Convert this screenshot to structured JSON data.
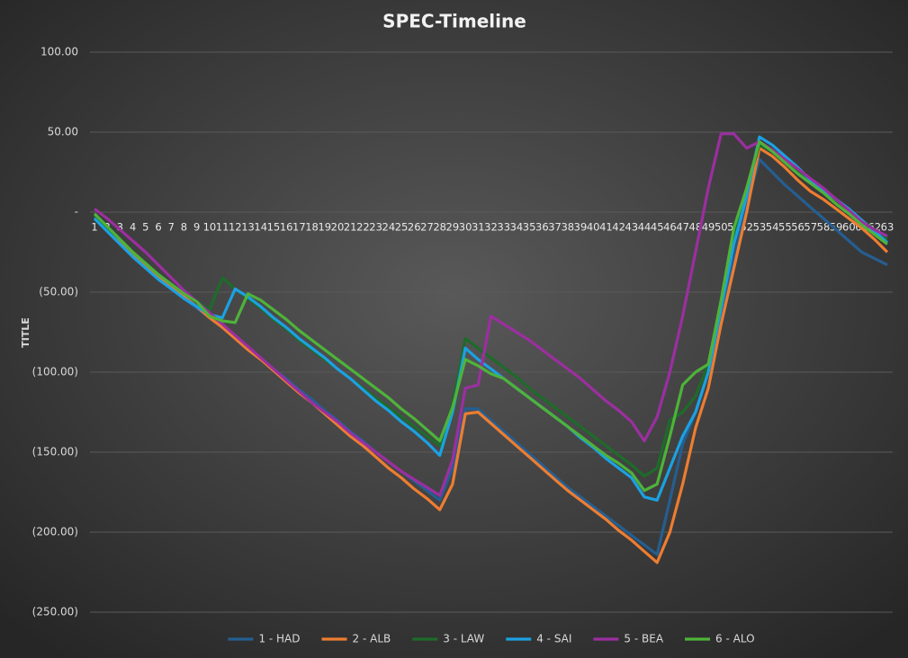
{
  "chart_data": {
    "type": "line",
    "title": "SPEC-Timeline",
    "y_label": "TITLE",
    "categories": [
      "1",
      "2",
      "3",
      "4",
      "5",
      "6",
      "7",
      "8",
      "9",
      "10",
      "11",
      "12",
      "13",
      "14",
      "15",
      "16",
      "17",
      "18",
      "19",
      "20",
      "21",
      "22",
      "23",
      "24",
      "25",
      "26",
      "27",
      "28",
      "29",
      "30",
      "31",
      "32",
      "33",
      "34",
      "35",
      "36",
      "37",
      "38",
      "39",
      "40",
      "41",
      "42",
      "43",
      "44",
      "45",
      "46",
      "47",
      "48",
      "49",
      "50",
      "51",
      "52",
      "53",
      "54",
      "55",
      "56",
      "57",
      "58",
      "59",
      "60",
      "61",
      "62",
      "63"
    ],
    "ylim": [
      -250,
      100
    ],
    "yticks": [
      {
        "value": -250,
        "label": "(250.00)"
      },
      {
        "value": -200,
        "label": "(200.00)"
      },
      {
        "value": -150,
        "label": "(150.00)"
      },
      {
        "value": -100,
        "label": "(100.00)"
      },
      {
        "value": -50,
        "label": "(50.00)"
      },
      {
        "value": 0,
        "label": "-"
      },
      {
        "value": 50,
        "label": "50.00"
      },
      {
        "value": 100,
        "label": "100.00"
      }
    ],
    "grid": true,
    "legend": "bottom",
    "series": [
      {
        "name": "1 - HAD",
        "color": "#255e91",
        "values": [
          -3,
          -11,
          -19,
          -27,
          -34,
          -41,
          -48,
          -54,
          -60,
          -66,
          -72,
          -78,
          -85,
          -91,
          -98,
          -104,
          -111,
          -117,
          -124,
          -130,
          -137,
          -143,
          -150,
          -156,
          -162,
          -168,
          -174,
          -180,
          -160,
          -123,
          -123,
          -130,
          -137,
          -144,
          -151,
          -158,
          -165,
          -172,
          -178,
          -184,
          -190,
          -196,
          -202,
          -208,
          -214,
          -180,
          -145,
          -125,
          -100,
          -65,
          -30,
          5,
          33,
          25,
          17,
          10,
          3,
          -4,
          -11,
          -18,
          -25,
          -29,
          -33
        ]
      },
      {
        "name": "2 - ALB",
        "color": "#ed7d31",
        "values": [
          -2,
          -10,
          -18,
          -26,
          -33,
          -40,
          -47,
          -53,
          -59,
          -66,
          -72,
          -79,
          -86,
          -92,
          -99,
          -106,
          -113,
          -119,
          -126,
          -133,
          -140,
          -146,
          -153,
          -160,
          -166,
          -173,
          -179,
          -186,
          -170,
          -126,
          -125,
          -132,
          -139,
          -146,
          -153,
          -160,
          -167,
          -174,
          -180,
          -186,
          -192,
          -199,
          -205,
          -212,
          -219,
          -200,
          -170,
          -135,
          -110,
          -70,
          -35,
          0,
          40,
          35,
          28,
          20,
          13,
          8,
          2,
          -4,
          -10,
          -17,
          -25
        ]
      },
      {
        "name": "3 - LAW",
        "color": "#1e6b2a",
        "values": [
          -2,
          -10,
          -17,
          -25,
          -32,
          -39,
          -45,
          -51,
          -56,
          -61,
          -41,
          -48,
          -54,
          -60,
          -67,
          -73,
          -80,
          -86,
          -92,
          -98,
          -104,
          -110,
          -116,
          -122,
          -128,
          -134,
          -140,
          -146,
          -120,
          -79,
          -85,
          -91,
          -97,
          -103,
          -110,
          -116,
          -122,
          -128,
          -134,
          -140,
          -146,
          -152,
          -158,
          -165,
          -160,
          -130,
          -125,
          -115,
          -95,
          -55,
          -15,
          15,
          42,
          38,
          32,
          26,
          19,
          13,
          7,
          1,
          -5,
          -11,
          -17
        ]
      },
      {
        "name": "4 - SAI",
        "color": "#1ba1e2",
        "values": [
          -4,
          -12,
          -20,
          -28,
          -35,
          -42,
          -48,
          -54,
          -59,
          -64,
          -66,
          -48,
          -53,
          -59,
          -66,
          -72,
          -79,
          -85,
          -91,
          -98,
          -104,
          -111,
          -118,
          -124,
          -131,
          -137,
          -144,
          -152,
          -125,
          -85,
          -92,
          -98,
          -104,
          -110,
          -116,
          -122,
          -128,
          -134,
          -141,
          -147,
          -154,
          -160,
          -166,
          -178,
          -180,
          -160,
          -140,
          -125,
          -100,
          -60,
          -20,
          10,
          47,
          42,
          35,
          28,
          20,
          14,
          8,
          2,
          -5,
          -12,
          -19
        ]
      },
      {
        "name": "5 - BEA",
        "color": "#9b2fa0",
        "values": [
          2,
          -4,
          -11,
          -18,
          -25,
          -33,
          -41,
          -49,
          -56,
          -63,
          -70,
          -77,
          -84,
          -91,
          -98,
          -105,
          -112,
          -119,
          -125,
          -131,
          -138,
          -144,
          -150,
          -156,
          -162,
          -167,
          -172,
          -177,
          -155,
          -110,
          -108,
          -65,
          -70,
          -75,
          -80,
          -86,
          -92,
          -98,
          -104,
          -111,
          -118,
          -124,
          -131,
          -143,
          -128,
          -100,
          -65,
          -25,
          15,
          49,
          49,
          40,
          44,
          39,
          33,
          27,
          21,
          15,
          8,
          1,
          -6,
          -11,
          -15
        ]
      },
      {
        "name": "6 - ALO",
        "color": "#4eb33a",
        "values": [
          -1,
          -9,
          -17,
          -25,
          -32,
          -39,
          -45,
          -51,
          -56,
          -65,
          -68,
          -69,
          -51,
          -55,
          -61,
          -67,
          -74,
          -80,
          -86,
          -92,
          -98,
          -104,
          -110,
          -116,
          -123,
          -129,
          -136,
          -143,
          -122,
          -92,
          -96,
          -101,
          -104,
          -110,
          -116,
          -122,
          -128,
          -134,
          -140,
          -146,
          -152,
          -157,
          -163,
          -174,
          -170,
          -140,
          -108,
          -100,
          -95,
          -55,
          -10,
          15,
          44,
          38,
          31,
          24,
          18,
          12,
          5,
          -1,
          -8,
          -14,
          -20
        ]
      }
    ]
  }
}
